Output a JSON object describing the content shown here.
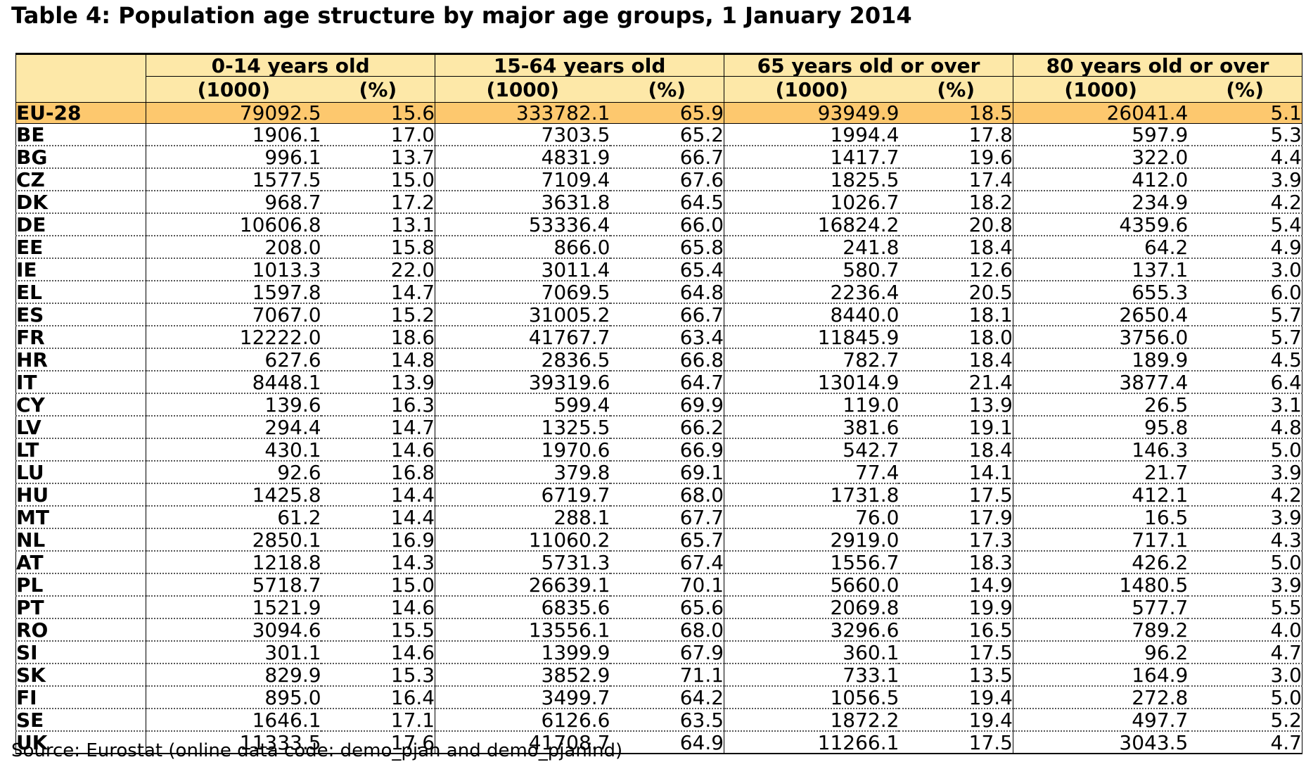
{
  "title": "Table 4: Population age structure by major age groups, 1 January 2014",
  "groups": [
    "0-14 years old",
    "15-64 years old",
    "65 years old or over",
    "80 years old or over"
  ],
  "subheaders": {
    "thousands": "(1000)",
    "percent": "(%)"
  },
  "rows": [
    {
      "country": "EU-28",
      "values": [
        "79092.5",
        "15.6",
        "333782.1",
        "65.9",
        "93949.9",
        "18.5",
        "26041.4",
        "5.1"
      ]
    },
    {
      "country": "BE",
      "values": [
        "1906.1",
        "17.0",
        "7303.5",
        "65.2",
        "1994.4",
        "17.8",
        "597.9",
        "5.3"
      ]
    },
    {
      "country": "BG",
      "values": [
        "996.1",
        "13.7",
        "4831.9",
        "66.7",
        "1417.7",
        "19.6",
        "322.0",
        "4.4"
      ]
    },
    {
      "country": "CZ",
      "values": [
        "1577.5",
        "15.0",
        "7109.4",
        "67.6",
        "1825.5",
        "17.4",
        "412.0",
        "3.9"
      ]
    },
    {
      "country": "DK",
      "values": [
        "968.7",
        "17.2",
        "3631.8",
        "64.5",
        "1026.7",
        "18.2",
        "234.9",
        "4.2"
      ]
    },
    {
      "country": "DE",
      "values": [
        "10606.8",
        "13.1",
        "53336.4",
        "66.0",
        "16824.2",
        "20.8",
        "4359.6",
        "5.4"
      ]
    },
    {
      "country": "EE",
      "values": [
        "208.0",
        "15.8",
        "866.0",
        "65.8",
        "241.8",
        "18.4",
        "64.2",
        "4.9"
      ]
    },
    {
      "country": "IE",
      "values": [
        "1013.3",
        "22.0",
        "3011.4",
        "65.4",
        "580.7",
        "12.6",
        "137.1",
        "3.0"
      ]
    },
    {
      "country": "EL",
      "values": [
        "1597.8",
        "14.7",
        "7069.5",
        "64.8",
        "2236.4",
        "20.5",
        "655.3",
        "6.0"
      ]
    },
    {
      "country": "ES",
      "values": [
        "7067.0",
        "15.2",
        "31005.2",
        "66.7",
        "8440.0",
        "18.1",
        "2650.4",
        "5.7"
      ]
    },
    {
      "country": "FR",
      "values": [
        "12222.0",
        "18.6",
        "41767.7",
        "63.4",
        "11845.9",
        "18.0",
        "3756.0",
        "5.7"
      ]
    },
    {
      "country": "HR",
      "values": [
        "627.6",
        "14.8",
        "2836.5",
        "66.8",
        "782.7",
        "18.4",
        "189.9",
        "4.5"
      ]
    },
    {
      "country": "IT",
      "values": [
        "8448.1",
        "13.9",
        "39319.6",
        "64.7",
        "13014.9",
        "21.4",
        "3877.4",
        "6.4"
      ]
    },
    {
      "country": "CY",
      "values": [
        "139.6",
        "16.3",
        "599.4",
        "69.9",
        "119.0",
        "13.9",
        "26.5",
        "3.1"
      ]
    },
    {
      "country": "LV",
      "values": [
        "294.4",
        "14.7",
        "1325.5",
        "66.2",
        "381.6",
        "19.1",
        "95.8",
        "4.8"
      ]
    },
    {
      "country": "LT",
      "values": [
        "430.1",
        "14.6",
        "1970.6",
        "66.9",
        "542.7",
        "18.4",
        "146.3",
        "5.0"
      ]
    },
    {
      "country": "LU",
      "values": [
        "92.6",
        "16.8",
        "379.8",
        "69.1",
        "77.4",
        "14.1",
        "21.7",
        "3.9"
      ]
    },
    {
      "country": "HU",
      "values": [
        "1425.8",
        "14.4",
        "6719.7",
        "68.0",
        "1731.8",
        "17.5",
        "412.1",
        "4.2"
      ]
    },
    {
      "country": "MT",
      "values": [
        "61.2",
        "14.4",
        "288.1",
        "67.7",
        "76.0",
        "17.9",
        "16.5",
        "3.9"
      ]
    },
    {
      "country": "NL",
      "values": [
        "2850.1",
        "16.9",
        "11060.2",
        "65.7",
        "2919.0",
        "17.3",
        "717.1",
        "4.3"
      ]
    },
    {
      "country": "AT",
      "values": [
        "1218.8",
        "14.3",
        "5731.3",
        "67.4",
        "1556.7",
        "18.3",
        "426.2",
        "5.0"
      ]
    },
    {
      "country": "PL",
      "values": [
        "5718.7",
        "15.0",
        "26639.1",
        "70.1",
        "5660.0",
        "14.9",
        "1480.5",
        "3.9"
      ]
    },
    {
      "country": "PT",
      "values": [
        "1521.9",
        "14.6",
        "6835.6",
        "65.6",
        "2069.8",
        "19.9",
        "577.7",
        "5.5"
      ]
    },
    {
      "country": "RO",
      "values": [
        "3094.6",
        "15.5",
        "13556.1",
        "68.0",
        "3296.6",
        "16.5",
        "789.2",
        "4.0"
      ]
    },
    {
      "country": "SI",
      "values": [
        "301.1",
        "14.6",
        "1399.9",
        "67.9",
        "360.1",
        "17.5",
        "96.2",
        "4.7"
      ]
    },
    {
      "country": "SK",
      "values": [
        "829.9",
        "15.3",
        "3852.9",
        "71.1",
        "733.1",
        "13.5",
        "164.9",
        "3.0"
      ]
    },
    {
      "country": "FI",
      "values": [
        "895.0",
        "16.4",
        "3499.7",
        "64.2",
        "1056.5",
        "19.4",
        "272.8",
        "5.0"
      ]
    },
    {
      "country": "SE",
      "values": [
        "1646.1",
        "17.1",
        "6126.6",
        "63.5",
        "1872.2",
        "19.4",
        "497.7",
        "5.2"
      ]
    },
    {
      "country": "UK",
      "values": [
        "11333.5",
        "17.6",
        "41708.7",
        "64.9",
        "11266.1",
        "17.5",
        "3043.5",
        "4.7"
      ]
    }
  ],
  "source": "Source: Eurostat (online data code: demo_pjan and demo_pjanind)",
  "colors": {
    "header_bg": "#fde8a8",
    "total_row_bg": "#fdc86e"
  }
}
